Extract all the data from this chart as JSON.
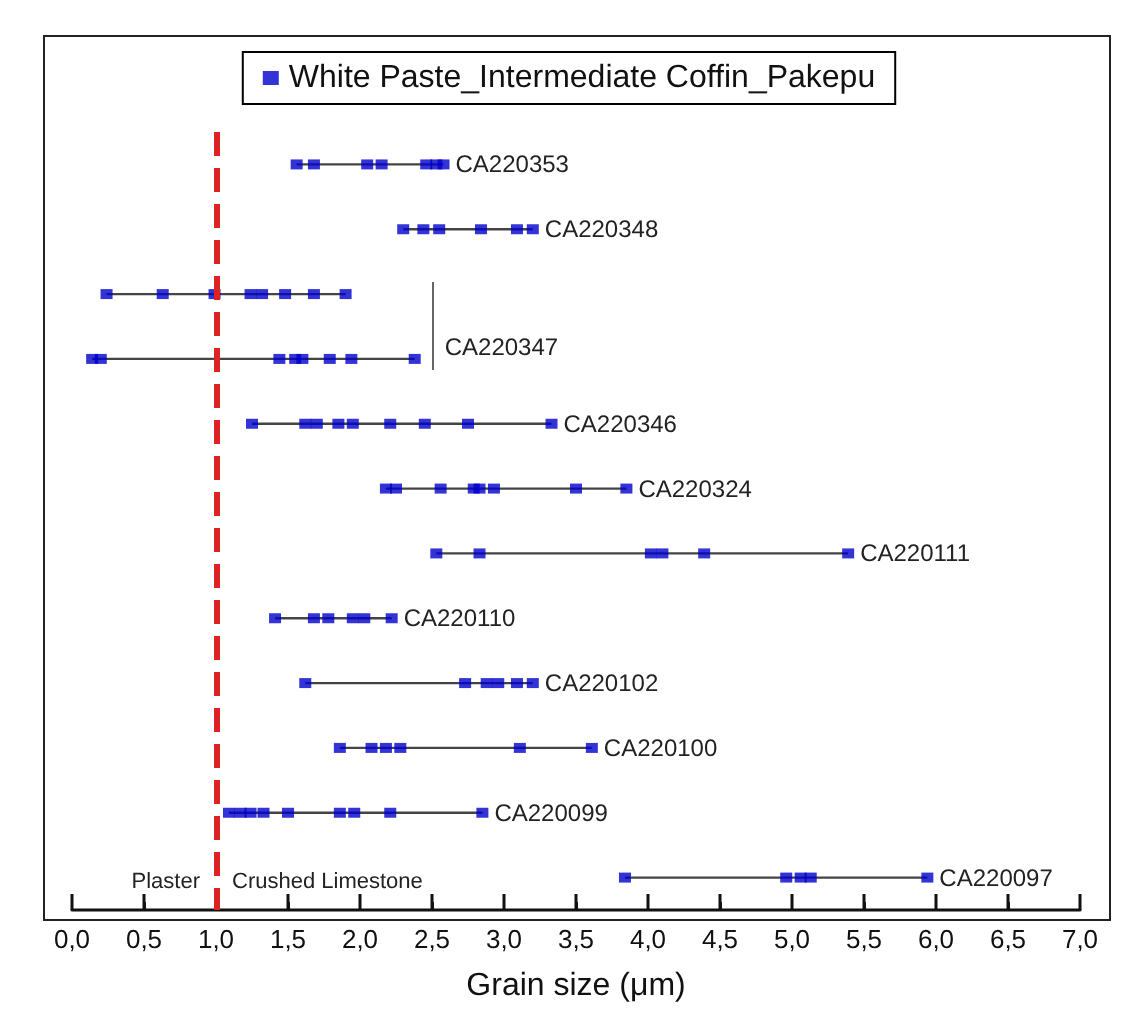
{
  "chart_data": {
    "type": "scatter",
    "orientation": "horizontal",
    "xlabel": "Grain size (μm)",
    "legend": "top",
    "marker": "square",
    "grid": false,
    "tick_labels": "x",
    "categories": [
      null,
      null,
      null,
      null,
      null,
      null,
      null,
      null,
      null,
      null,
      null,
      null
    ],
    "xlim": [
      0,
      7
    ],
    "xticks": [
      {
        "value": 0,
        "label": "0,0"
      },
      {
        "value": 0.5,
        "label": "0,5"
      },
      {
        "value": 1,
        "label": "1,0"
      },
      {
        "value": 1.5,
        "label": "1,5"
      },
      {
        "value": 2,
        "label": "2,0"
      },
      {
        "value": 2.5,
        "label": "2,5"
      },
      {
        "value": 3,
        "label": "3,0"
      },
      {
        "value": 3.5,
        "label": "3,5"
      },
      {
        "value": 4,
        "label": "4,0"
      },
      {
        "value": 4.5,
        "label": "4,5"
      },
      {
        "value": 5,
        "label": "5,0"
      },
      {
        "value": 5.5,
        "label": "5,5"
      },
      {
        "value": 6,
        "label": "6,0"
      },
      {
        "value": 6.5,
        "label": "6,5"
      },
      {
        "value": 7,
        "label": "7,0"
      }
    ],
    "series": [
      {
        "type": "bar",
        "color": "#444444",
        "base": [
          1.56,
          2.3,
          0.24,
          0.14,
          1.25,
          2.18,
          2.53,
          1.41,
          1.62,
          1.86,
          1.09,
          3.84
        ],
        "values": [
          1.02,
          0.9,
          1.66,
          2.24,
          2.08,
          1.67,
          2.86,
          0.81,
          1.58,
          1.75,
          1.76,
          2.1
        ],
        "value_labels": [
          "CA220353",
          "CA220348",
          null,
          "CA220347",
          "CA220346",
          "CA220324",
          "CA220111",
          "CA220110",
          "CA220102",
          "CA220100",
          "CA220099",
          "CA220097"
        ]
      },
      {
        "name": "White Paste_Intermediate Coffin_Pakepu",
        "color": "#0000cc",
        "values": [
          1.56,
          2.3,
          0.24,
          0.14,
          1.25,
          2.18,
          2.53,
          1.41,
          1.62,
          1.86,
          1.09,
          3.84
        ]
      },
      {
        "color": "#0000cc",
        "values": [
          1.68,
          2.44,
          0.63,
          0.2,
          1.62,
          2.25,
          2.83,
          1.68,
          2.73,
          2.08,
          1.17,
          4.96
        ]
      },
      {
        "color": "#0000cc",
        "values": [
          2.05,
          2.55,
          0.99,
          1.44,
          1.7,
          2.56,
          4.02,
          1.78,
          2.88,
          2.18,
          1.24,
          5.06
        ]
      },
      {
        "color": "#0000cc",
        "values": [
          2.15,
          2.84,
          1.24,
          1.55,
          1.85,
          2.79,
          4.1,
          1.95,
          2.96,
          2.28,
          1.33,
          5.13
        ]
      },
      {
        "color": "#0000cc",
        "values": [
          2.46,
          3.09,
          1.32,
          1.6,
          1.95,
          2.83,
          4.39,
          2.03,
          3.09,
          3.11,
          1.5,
          5.94
        ]
      },
      {
        "color": "#0000cc",
        "values": [
          2.53,
          3.2,
          1.48,
          1.79,
          2.21,
          2.93,
          5.39,
          2.22,
          3.2,
          3.61,
          1.86,
          null
        ]
      },
      {
        "color": "#0000cc",
        "values": [
          2.58,
          null,
          1.68,
          1.94,
          2.45,
          3.5,
          null,
          null,
          null,
          null,
          1.96,
          null
        ]
      },
      {
        "color": "#0000cc",
        "values": [
          null,
          null,
          1.9,
          2.38,
          2.75,
          3.85,
          null,
          null,
          null,
          null,
          2.21,
          null
        ]
      },
      {
        "color": "#0000cc",
        "values": [
          null,
          null,
          null,
          null,
          3.33,
          null,
          null,
          null,
          null,
          null,
          2.85,
          null
        ]
      }
    ],
    "ref_lines": [
      {
        "axis": "x",
        "value": 1,
        "color": "#dd2222",
        "line_style": "dashed"
      }
    ],
    "annotations": [
      "Plaster",
      "Crushed Limestone"
    ]
  }
}
